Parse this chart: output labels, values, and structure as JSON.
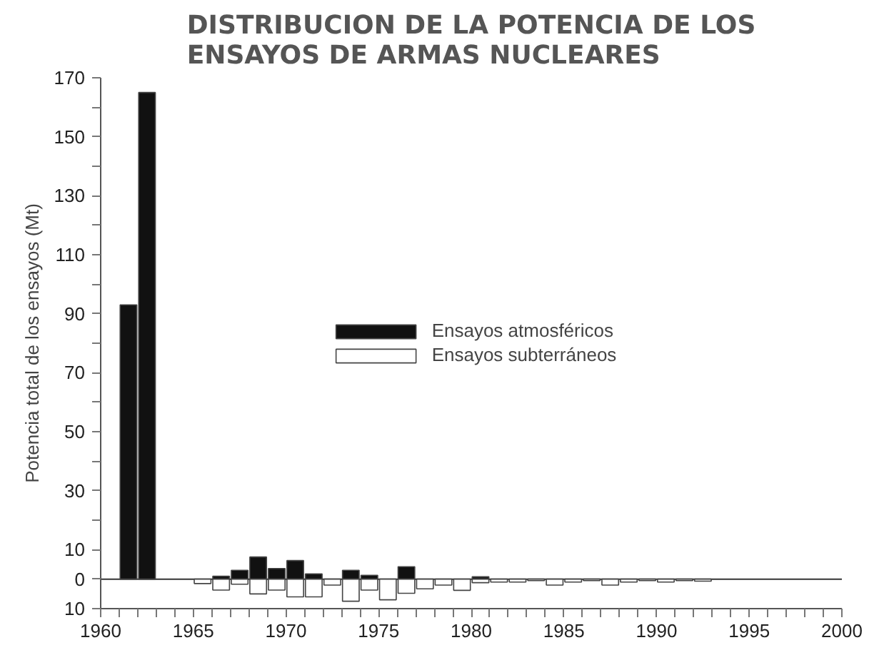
{
  "chart_data": {
    "type": "bar",
    "title": "DISTRIBUCION DE LA POTENCIA DE LOS\nENSAYOS DE ARMAS NUCLEARES",
    "ylabel": "Potencia total de los ensayos (Mt)",
    "x": [
      1961,
      1962,
      1963,
      1964,
      1965,
      1966,
      1967,
      1968,
      1969,
      1970,
      1971,
      1972,
      1973,
      1974,
      1975,
      1976,
      1977,
      1978,
      1979,
      1980,
      1981,
      1982,
      1983,
      1984,
      1985,
      1986,
      1987,
      1988,
      1989,
      1990,
      1991,
      1992
    ],
    "series": [
      {
        "name": "Ensayos atmosféricos",
        "color": "#111111",
        "values": [
          93,
          165,
          null,
          null,
          null,
          1,
          3,
          7.5,
          3.6,
          6.3,
          1.8,
          null,
          3,
          1.3,
          null,
          4.2,
          null,
          null,
          null,
          0.8,
          null,
          null,
          null,
          null,
          null,
          null,
          null,
          null,
          null,
          null,
          null,
          null
        ]
      },
      {
        "name": "Ensayos subterráneos",
        "color": "#ffffff",
        "values": [
          null,
          null,
          null,
          null,
          -1.5,
          -3.7,
          -1.7,
          -5,
          -3.7,
          -6,
          -6,
          -2,
          -7.5,
          -3.7,
          -7,
          -4.8,
          -3.3,
          -2,
          -3.8,
          -1.2,
          -1,
          -1,
          -0.5,
          -2,
          -1,
          -0.5,
          -2,
          -1,
          -0.5,
          -1,
          -0.5,
          -0.7
        ]
      }
    ],
    "xlim": [
      1960,
      2000
    ],
    "ylim": [
      -10,
      170
    ],
    "xticks": [
      1960,
      {
        "value": 1961,
        "label": null
      },
      {
        "value": 1962,
        "label": null
      },
      {
        "value": 1963,
        "label": null
      },
      {
        "value": 1964,
        "label": null
      },
      1965,
      {
        "value": 1966,
        "label": null
      },
      {
        "value": 1967,
        "label": null
      },
      {
        "value": 1968,
        "label": null
      },
      {
        "value": 1969,
        "label": null
      },
      1970,
      {
        "value": 1971,
        "label": null
      },
      {
        "value": 1972,
        "label": null
      },
      {
        "value": 1973,
        "label": null
      },
      {
        "value": 1974,
        "label": null
      },
      1975,
      {
        "value": 1976,
        "label": null
      },
      {
        "value": 1977,
        "label": null
      },
      {
        "value": 1978,
        "label": null
      },
      {
        "value": 1979,
        "label": null
      },
      1980,
      {
        "value": 1981,
        "label": null
      },
      {
        "value": 1982,
        "label": null
      },
      {
        "value": 1983,
        "label": null
      },
      {
        "value": 1984,
        "label": null
      },
      1985,
      {
        "value": 1986,
        "label": null
      },
      {
        "value": 1987,
        "label": null
      },
      {
        "value": 1988,
        "label": null
      },
      {
        "value": 1989,
        "label": null
      },
      1990,
      {
        "value": 1991,
        "label": null
      },
      {
        "value": 1992,
        "label": null
      },
      {
        "value": 1993,
        "label": null
      },
      {
        "value": 1994,
        "label": null
      },
      1995,
      {
        "value": 1996,
        "label": null
      },
      {
        "value": 1997,
        "label": null
      },
      {
        "value": 1998,
        "label": null
      },
      {
        "value": 1999,
        "label": null
      },
      2000
    ],
    "yticks": [
      {
        "value": -10,
        "label": "10"
      },
      0,
      10,
      {
        "value": 20,
        "label": null
      },
      30,
      {
        "value": 40,
        "label": null
      },
      50,
      {
        "value": 60,
        "label": null
      },
      70,
      {
        "value": 80,
        "label": null
      },
      90,
      {
        "value": 100,
        "label": null
      },
      110,
      {
        "value": 120,
        "label": null
      },
      130,
      {
        "value": 140,
        "label": null
      },
      150,
      {
        "value": 160,
        "label": null
      },
      170
    ],
    "ref_lines": [
      {
        "axis": "y",
        "value": 0,
        "color": "#333333"
      }
    ],
    "grid": false,
    "legend": "center"
  }
}
